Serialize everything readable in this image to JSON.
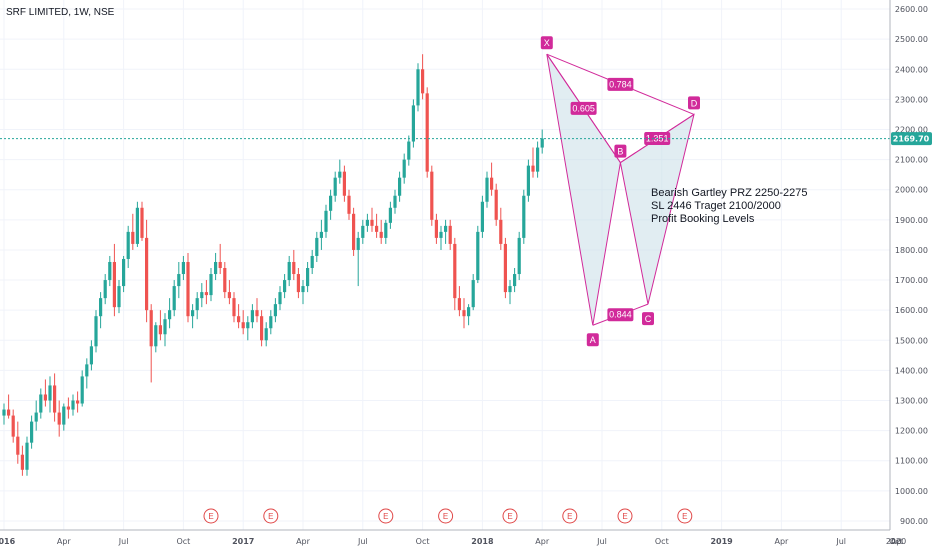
{
  "title": "SRF LIMITED, 1W, NSE",
  "colors": {
    "up": "#26a69a",
    "down": "#ef5350",
    "pattern": "#d12a9a",
    "pattern_fill": "#c8dfe8",
    "last_price": "#26a69a",
    "earnings": "#e04848"
  },
  "last_price_label": "2169.70",
  "note_lines": [
    "Bearish Gartley PRZ 2250-2275",
    "SL 2446 Traget 2100/2000",
    "Profit Booking Levels"
  ],
  "earnings_marker": "E",
  "chart_data": {
    "type": "candlestick",
    "title": "SRF LIMITED, 1W, NSE",
    "y_ticks": [
      "900.00",
      "1000.00",
      "1100.00",
      "1200.00",
      "1300.00",
      "1400.00",
      "1500.00",
      "1600.00",
      "1700.00",
      "1800.00",
      "1900.00",
      "2000.00",
      "2100.00",
      "2200.00",
      "2300.00",
      "2400.00",
      "2500.00",
      "2600.00"
    ],
    "ylim": [
      870,
      2630
    ],
    "x_ticks": [
      "2016",
      "Apr",
      "Jul",
      "Oct",
      "2017",
      "Apr",
      "Jul",
      "Oct",
      "2018",
      "Apr",
      "Jul",
      "Oct",
      "2019",
      "Apr",
      "Jul",
      "Oct",
      "2020",
      "Ap"
    ],
    "xlim": [
      0,
      208
    ],
    "x_tick_weeks": [
      0,
      13,
      26,
      39,
      52,
      65,
      78,
      91,
      104,
      117,
      130,
      143,
      156,
      169,
      182,
      195,
      208,
      221
    ],
    "last_price": 2169.7,
    "pattern": {
      "name": "Bearish Gartley",
      "points": [
        {
          "label": "X",
          "week": 118,
          "price": 2450
        },
        {
          "label": "A",
          "week": 128,
          "price": 1550
        },
        {
          "label": "B",
          "week": 134,
          "price": 2090
        },
        {
          "label": "C",
          "week": 140,
          "price": 1620
        },
        {
          "label": "D",
          "week": 150,
          "price": 2250
        }
      ],
      "ratios": [
        {
          "label": "0.605",
          "between": "XB"
        },
        {
          "label": "0.784",
          "between": "XD"
        },
        {
          "label": "0.844",
          "between": "AC"
        },
        {
          "label": "1.351",
          "between": "BD"
        }
      ]
    },
    "earnings_weeks": [
      45,
      58,
      83,
      96,
      110,
      123,
      135,
      148
    ],
    "candles": [
      [
        1250,
        1290,
        1220,
        1270
      ],
      [
        1270,
        1320,
        1240,
        1250
      ],
      [
        1250,
        1270,
        1160,
        1180
      ],
      [
        1180,
        1230,
        1090,
        1120
      ],
      [
        1120,
        1150,
        1050,
        1070
      ],
      [
        1070,
        1180,
        1050,
        1160
      ],
      [
        1160,
        1250,
        1140,
        1230
      ],
      [
        1230,
        1300,
        1200,
        1260
      ],
      [
        1260,
        1340,
        1240,
        1320
      ],
      [
        1320,
        1370,
        1280,
        1300
      ],
      [
        1300,
        1380,
        1260,
        1350
      ],
      [
        1350,
        1390,
        1230,
        1260
      ],
      [
        1260,
        1300,
        1180,
        1220
      ],
      [
        1220,
        1290,
        1200,
        1280
      ],
      [
        1280,
        1310,
        1240,
        1270
      ],
      [
        1270,
        1320,
        1250,
        1300
      ],
      [
        1300,
        1330,
        1260,
        1290
      ],
      [
        1290,
        1400,
        1280,
        1380
      ],
      [
        1380,
        1440,
        1340,
        1420
      ],
      [
        1420,
        1500,
        1400,
        1480
      ],
      [
        1480,
        1600,
        1460,
        1580
      ],
      [
        1580,
        1660,
        1540,
        1640
      ],
      [
        1640,
        1720,
        1620,
        1700
      ],
      [
        1700,
        1780,
        1680,
        1760
      ],
      [
        1760,
        1820,
        1580,
        1610
      ],
      [
        1610,
        1700,
        1590,
        1680
      ],
      [
        1680,
        1780,
        1660,
        1770
      ],
      [
        1770,
        1880,
        1740,
        1860
      ],
      [
        1860,
        1920,
        1800,
        1820
      ],
      [
        1820,
        1960,
        1810,
        1940
      ],
      [
        1940,
        1960,
        1830,
        1840
      ],
      [
        1840,
        1900,
        1560,
        1600
      ],
      [
        1600,
        1620,
        1360,
        1480
      ],
      [
        1480,
        1560,
        1460,
        1550
      ],
      [
        1550,
        1600,
        1500,
        1520
      ],
      [
        1520,
        1590,
        1480,
        1570
      ],
      [
        1570,
        1640,
        1540,
        1600
      ],
      [
        1600,
        1700,
        1580,
        1680
      ],
      [
        1680,
        1760,
        1640,
        1720
      ],
      [
        1720,
        1780,
        1700,
        1760
      ],
      [
        1760,
        1790,
        1560,
        1580
      ],
      [
        1580,
        1620,
        1540,
        1600
      ],
      [
        1600,
        1660,
        1570,
        1640
      ],
      [
        1640,
        1690,
        1610,
        1660
      ],
      [
        1660,
        1700,
        1620,
        1650
      ],
      [
        1650,
        1740,
        1630,
        1720
      ],
      [
        1720,
        1790,
        1700,
        1760
      ],
      [
        1760,
        1820,
        1720,
        1740
      ],
      [
        1740,
        1760,
        1640,
        1660
      ],
      [
        1660,
        1700,
        1620,
        1640
      ],
      [
        1640,
        1660,
        1560,
        1580
      ],
      [
        1580,
        1620,
        1540,
        1560
      ],
      [
        1560,
        1600,
        1520,
        1540
      ],
      [
        1540,
        1580,
        1500,
        1560
      ],
      [
        1560,
        1620,
        1540,
        1600
      ],
      [
        1600,
        1640,
        1560,
        1580
      ],
      [
        1580,
        1600,
        1480,
        1500
      ],
      [
        1500,
        1560,
        1480,
        1540
      ],
      [
        1540,
        1600,
        1520,
        1580
      ],
      [
        1580,
        1640,
        1560,
        1620
      ],
      [
        1620,
        1680,
        1600,
        1660
      ],
      [
        1660,
        1720,
        1640,
        1700
      ],
      [
        1700,
        1780,
        1680,
        1760
      ],
      [
        1760,
        1800,
        1700,
        1720
      ],
      [
        1720,
        1740,
        1640,
        1660
      ],
      [
        1660,
        1700,
        1620,
        1680
      ],
      [
        1680,
        1760,
        1660,
        1740
      ],
      [
        1740,
        1800,
        1720,
        1780
      ],
      [
        1780,
        1860,
        1760,
        1840
      ],
      [
        1840,
        1900,
        1800,
        1860
      ],
      [
        1860,
        1950,
        1840,
        1930
      ],
      [
        1930,
        2000,
        1900,
        1980
      ],
      [
        1980,
        2060,
        1960,
        2040
      ],
      [
        2040,
        2100,
        2020,
        2060
      ],
      [
        2060,
        2080,
        1960,
        1980
      ],
      [
        1980,
        2000,
        1900,
        1920
      ],
      [
        1920,
        1940,
        1780,
        1800
      ],
      [
        1800,
        1860,
        1680,
        1840
      ],
      [
        1840,
        1900,
        1820,
        1880
      ],
      [
        1880,
        1920,
        1860,
        1900
      ],
      [
        1900,
        1940,
        1860,
        1880
      ],
      [
        1880,
        1920,
        1840,
        1860
      ],
      [
        1860,
        1900,
        1820,
        1840
      ],
      [
        1840,
        1900,
        1820,
        1890
      ],
      [
        1890,
        1960,
        1870,
        1940
      ],
      [
        1940,
        2000,
        1920,
        1980
      ],
      [
        1980,
        2060,
        1960,
        2040
      ],
      [
        2040,
        2120,
        2020,
        2100
      ],
      [
        2100,
        2180,
        2080,
        2160
      ],
      [
        2160,
        2300,
        2140,
        2280
      ],
      [
        2280,
        2420,
        2260,
        2400
      ],
      [
        2400,
        2450,
        2300,
        2320
      ],
      [
        2320,
        2340,
        2040,
        2060
      ],
      [
        2060,
        2080,
        1880,
        1900
      ],
      [
        1900,
        1920,
        1820,
        1840
      ],
      [
        1840,
        1880,
        1800,
        1860
      ],
      [
        1860,
        1900,
        1820,
        1880
      ],
      [
        1880,
        1900,
        1800,
        1820
      ],
      [
        1820,
        1840,
        1600,
        1640
      ],
      [
        1640,
        1680,
        1580,
        1600
      ],
      [
        1600,
        1640,
        1540,
        1580
      ],
      [
        1580,
        1620,
        1550,
        1610
      ],
      [
        1610,
        1720,
        1600,
        1700
      ],
      [
        1700,
        1880,
        1690,
        1860
      ],
      [
        1860,
        1980,
        1840,
        1960
      ],
      [
        1960,
        2060,
        1940,
        2040
      ],
      [
        2040,
        2090,
        1980,
        2000
      ],
      [
        2000,
        2020,
        1880,
        1900
      ],
      [
        1900,
        1940,
        1800,
        1820
      ],
      [
        1820,
        1840,
        1640,
        1660
      ],
      [
        1660,
        1700,
        1620,
        1680
      ],
      [
        1680,
        1740,
        1660,
        1720
      ],
      [
        1720,
        1860,
        1700,
        1840
      ],
      [
        1840,
        2000,
        1820,
        1980
      ],
      [
        1980,
        2100,
        1960,
        2080
      ],
      [
        2080,
        2140,
        2040,
        2060
      ],
      [
        2060,
        2160,
        2040,
        2140
      ],
      [
        2140,
        2200,
        2120,
        2170
      ]
    ]
  }
}
